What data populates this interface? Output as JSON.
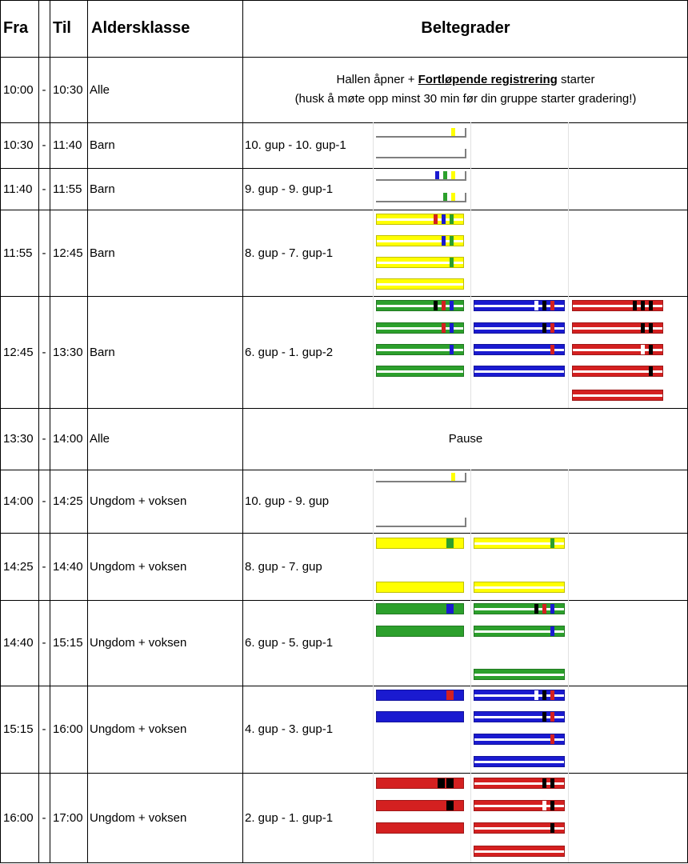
{
  "header": {
    "fra": "Fra",
    "til": "Til",
    "aldersklasse": "Aldersklasse",
    "beltegrader": "Beltegrader"
  },
  "colors": {
    "white": "#ffffff",
    "yellow": "#ffff00",
    "green": "#2ca02c",
    "blue": "#1a1ad0",
    "red": "#d42020",
    "black": "#000000",
    "outline": "#7f7f7f"
  },
  "rows": [
    {
      "fra": "10:00",
      "dash": "-",
      "til": "10:30",
      "age": "Alle",
      "note_line1_pre": "Hallen åpner + ",
      "note_line1_bold": "Fortløpende registrering",
      "note_line1_post": " starter",
      "note_line2": "(husk å møte opp minst 30 min før din gruppe starter gradering!)"
    },
    {
      "fra": "10:30",
      "dash": "-",
      "til": "11:40",
      "age": "Barn",
      "grade": "10. gup - 10. gup-1"
    },
    {
      "fra": "11:40",
      "dash": "-",
      "til": "11:55",
      "age": "Barn",
      "grade": "9. gup - 9. gup-1"
    },
    {
      "fra": "11:55",
      "dash": "-",
      "til": "12:45",
      "age": "Barn",
      "grade": "8. gup - 7. gup-1"
    },
    {
      "fra": "12:45",
      "dash": "-",
      "til": "13:30",
      "age": "Barn",
      "grade": "6. gup - 1. gup-2"
    },
    {
      "fra": "13:30",
      "dash": "-",
      "til": "14:00",
      "age": "Alle",
      "note": "Pause"
    },
    {
      "fra": "14:00",
      "dash": "-",
      "til": "14:25",
      "age": "Ungdom + voksen",
      "grade": "10. gup - 9. gup"
    },
    {
      "fra": "14:25",
      "dash": "-",
      "til": "14:40",
      "age": "Ungdom + voksen",
      "grade": "8. gup - 7. gup"
    },
    {
      "fra": "14:40",
      "dash": "-",
      "til": "15:15",
      "age": "Ungdom + voksen",
      "grade": "6. gup - 5. gup-1"
    },
    {
      "fra": "15:15",
      "dash": "-",
      "til": "16:00",
      "age": "Ungdom + voksen",
      "grade": "4. gup - 3. gup-1"
    },
    {
      "fra": "16:00",
      "dash": "-",
      "til": "17:00",
      "age": "Ungdom + voksen",
      "grade": "2. gup - 1. gup-1"
    }
  ],
  "belts": [
    {
      "row": 1,
      "col": 0,
      "slot": 0,
      "color": "white",
      "stripe": false,
      "tabs": [
        "yellow"
      ]
    },
    {
      "row": 1,
      "col": 0,
      "slot": 1,
      "color": "white",
      "stripe": false,
      "tabs": []
    },
    {
      "row": 2,
      "col": 0,
      "slot": 0,
      "color": "white",
      "stripe": false,
      "tabs": [
        "blue",
        "green",
        "yellow"
      ]
    },
    {
      "row": 2,
      "col": 0,
      "slot": 1,
      "color": "white",
      "stripe": false,
      "tabs": [
        "green",
        "yellow"
      ]
    },
    {
      "row": 3,
      "col": 0,
      "slot": 0,
      "color": "yellow",
      "stripe": true,
      "tabs": [
        "red",
        "blue",
        "green"
      ]
    },
    {
      "row": 3,
      "col": 0,
      "slot": 1,
      "color": "yellow",
      "stripe": true,
      "tabs": [
        "blue",
        "green"
      ]
    },
    {
      "row": 3,
      "col": 0,
      "slot": 2,
      "color": "yellow",
      "stripe": true,
      "tabs": [
        "green"
      ]
    },
    {
      "row": 3,
      "col": 0,
      "slot": 3,
      "color": "yellow",
      "stripe": true,
      "tabs": []
    },
    {
      "row": 4,
      "col": 0,
      "slot": 0,
      "color": "green",
      "stripe": true,
      "tabs": [
        "black",
        "red",
        "blue"
      ]
    },
    {
      "row": 4,
      "col": 0,
      "slot": 1,
      "color": "green",
      "stripe": true,
      "tabs": [
        "red",
        "blue"
      ]
    },
    {
      "row": 4,
      "col": 0,
      "slot": 2,
      "color": "green",
      "stripe": true,
      "tabs": [
        "blue"
      ]
    },
    {
      "row": 4,
      "col": 0,
      "slot": 3,
      "color": "green",
      "stripe": true,
      "tabs": []
    },
    {
      "row": 4,
      "col": 1,
      "slot": 0,
      "color": "blue",
      "stripe": true,
      "tabs": [
        "white",
        "black",
        "red"
      ]
    },
    {
      "row": 4,
      "col": 1,
      "slot": 1,
      "color": "blue",
      "stripe": true,
      "tabs": [
        "black",
        "red"
      ]
    },
    {
      "row": 4,
      "col": 1,
      "slot": 2,
      "color": "blue",
      "stripe": true,
      "tabs": [
        "red"
      ]
    },
    {
      "row": 4,
      "col": 1,
      "slot": 3,
      "color": "blue",
      "stripe": true,
      "tabs": []
    },
    {
      "row": 4,
      "col": 2,
      "slot": 0,
      "color": "red",
      "stripe": true,
      "tabs": [
        "black",
        "black",
        "black"
      ]
    },
    {
      "row": 4,
      "col": 2,
      "slot": 1,
      "color": "red",
      "stripe": true,
      "tabs": [
        "black",
        "black"
      ]
    },
    {
      "row": 4,
      "col": 2,
      "slot": 2,
      "color": "red",
      "stripe": true,
      "tabs": [
        "white",
        "black"
      ]
    },
    {
      "row": 4,
      "col": 2,
      "slot": 3,
      "color": "red",
      "stripe": true,
      "tabs": [
        "black"
      ]
    },
    {
      "row": 4,
      "col": 2,
      "slot": 4,
      "color": "red",
      "stripe": true,
      "tabs": []
    },
    {
      "row": 6,
      "col": 0,
      "slot": 0,
      "color": "white",
      "stripe": false,
      "tabs": [
        "yellow"
      ]
    },
    {
      "row": 6,
      "col": 0,
      "slot": 1,
      "color": "white",
      "stripe": false,
      "tabs": []
    },
    {
      "row": 7,
      "col": 0,
      "slot": 0,
      "color": "yellow",
      "stripe": false,
      "tabs": [
        "green"
      ]
    },
    {
      "row": 7,
      "col": 0,
      "slot": 1,
      "color": "yellow",
      "stripe": false,
      "tabs": []
    },
    {
      "row": 7,
      "col": 1,
      "slot": 0,
      "color": "yellow",
      "stripe": true,
      "tabs": [
        "green"
      ]
    },
    {
      "row": 7,
      "col": 1,
      "slot": 1,
      "color": "yellow",
      "stripe": true,
      "tabs": []
    },
    {
      "row": 8,
      "col": 0,
      "slot": 0,
      "color": "green",
      "stripe": false,
      "tabs": [
        "blue"
      ]
    },
    {
      "row": 8,
      "col": 0,
      "slot": 1,
      "color": "green",
      "stripe": false,
      "tabs": []
    },
    {
      "row": 8,
      "col": 1,
      "slot": 0,
      "color": "green",
      "stripe": true,
      "tabs": [
        "black",
        "red",
        "blue"
      ]
    },
    {
      "row": 8,
      "col": 1,
      "slot": 1,
      "color": "green",
      "stripe": true,
      "tabs": [
        "blue"
      ]
    },
    {
      "row": 8,
      "col": 1,
      "slot": 2,
      "color": "green",
      "stripe": true,
      "tabs": []
    },
    {
      "row": 9,
      "col": 0,
      "slot": 0,
      "color": "blue",
      "stripe": false,
      "tabs": [
        "red"
      ]
    },
    {
      "row": 9,
      "col": 0,
      "slot": 1,
      "color": "blue",
      "stripe": false,
      "tabs": []
    },
    {
      "row": 9,
      "col": 1,
      "slot": 0,
      "color": "blue",
      "stripe": true,
      "tabs": [
        "white",
        "black",
        "red"
      ]
    },
    {
      "row": 9,
      "col": 1,
      "slot": 1,
      "color": "blue",
      "stripe": true,
      "tabs": [
        "black",
        "red"
      ]
    },
    {
      "row": 9,
      "col": 1,
      "slot": 2,
      "color": "blue",
      "stripe": true,
      "tabs": [
        "red"
      ]
    },
    {
      "row": 9,
      "col": 1,
      "slot": 3,
      "color": "blue",
      "stripe": true,
      "tabs": []
    },
    {
      "row": 10,
      "col": 0,
      "slot": 0,
      "color": "red",
      "stripe": false,
      "tabs": [
        "black",
        "black"
      ]
    },
    {
      "row": 10,
      "col": 0,
      "slot": 1,
      "color": "red",
      "stripe": false,
      "tabs": [
        "black"
      ]
    },
    {
      "row": 10,
      "col": 0,
      "slot": 2,
      "color": "red",
      "stripe": false,
      "tabs": []
    },
    {
      "row": 10,
      "col": 1,
      "slot": 0,
      "color": "red",
      "stripe": true,
      "tabs": [
        "black",
        "black"
      ]
    },
    {
      "row": 10,
      "col": 1,
      "slot": 1,
      "color": "red",
      "stripe": true,
      "tabs": [
        "white",
        "black"
      ]
    },
    {
      "row": 10,
      "col": 1,
      "slot": 2,
      "color": "red",
      "stripe": true,
      "tabs": [
        "black"
      ]
    },
    {
      "row": 10,
      "col": 1,
      "slot": 3,
      "color": "red",
      "stripe": true,
      "tabs": []
    }
  ]
}
